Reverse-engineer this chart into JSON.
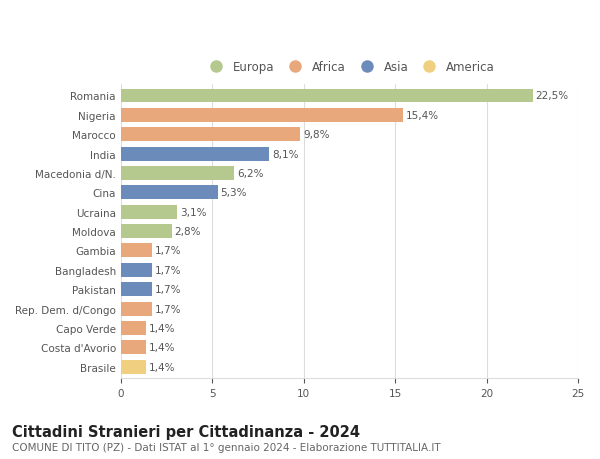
{
  "categories": [
    "Romania",
    "Nigeria",
    "Marocco",
    "India",
    "Macedonia d/N.",
    "Cina",
    "Ucraina",
    "Moldova",
    "Gambia",
    "Bangladesh",
    "Pakistan",
    "Rep. Dem. d/Congo",
    "Capo Verde",
    "Costa d'Avorio",
    "Brasile"
  ],
  "values": [
    22.5,
    15.4,
    9.8,
    8.1,
    6.2,
    5.3,
    3.1,
    2.8,
    1.7,
    1.7,
    1.7,
    1.7,
    1.4,
    1.4,
    1.4
  ],
  "labels": [
    "22,5%",
    "15,4%",
    "9,8%",
    "8,1%",
    "6,2%",
    "5,3%",
    "3,1%",
    "2,8%",
    "1,7%",
    "1,7%",
    "1,7%",
    "1,7%",
    "1,4%",
    "1,4%",
    "1,4%"
  ],
  "continents": [
    "Europa",
    "Africa",
    "Africa",
    "Asia",
    "Europa",
    "Asia",
    "Europa",
    "Europa",
    "Africa",
    "Asia",
    "Asia",
    "Africa",
    "Africa",
    "Africa",
    "America"
  ],
  "colors": {
    "Europa": "#b5c98e",
    "Africa": "#e8a87c",
    "Asia": "#6b8cba",
    "America": "#f0d080"
  },
  "legend_order": [
    "Europa",
    "Africa",
    "Asia",
    "America"
  ],
  "title": "Cittadini Stranieri per Cittadinanza - 2024",
  "subtitle": "COMUNE DI TITO (PZ) - Dati ISTAT al 1° gennaio 2024 - Elaborazione TUTTITALIA.IT",
  "xlim": [
    0,
    25
  ],
  "xticks": [
    0,
    5,
    10,
    15,
    20,
    25
  ],
  "background_color": "#ffffff",
  "grid_color": "#dddddd",
  "bar_height": 0.72,
  "title_fontsize": 10.5,
  "subtitle_fontsize": 7.5,
  "label_fontsize": 7.5,
  "tick_fontsize": 7.5,
  "legend_fontsize": 8.5
}
